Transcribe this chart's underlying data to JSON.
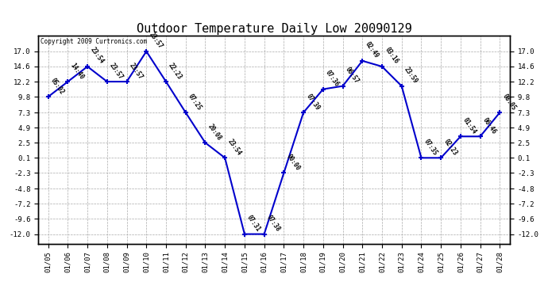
{
  "title": "Outdoor Temperature Daily Low 20090129",
  "copyright_text": "Copyright 2009 Curtronics.com",
  "dates": [
    "01/05",
    "01/06",
    "01/07",
    "01/08",
    "01/09",
    "01/10",
    "01/11",
    "01/12",
    "01/13",
    "01/14",
    "01/15",
    "01/16",
    "01/17",
    "01/18",
    "01/19",
    "01/20",
    "01/21",
    "01/22",
    "01/23",
    "01/24",
    "01/25",
    "01/26",
    "01/27",
    "01/28"
  ],
  "values": [
    9.8,
    12.2,
    14.6,
    12.2,
    12.2,
    17.0,
    12.2,
    7.3,
    2.5,
    0.1,
    -12.0,
    -12.0,
    -2.3,
    7.3,
    11.0,
    11.5,
    15.5,
    14.6,
    11.5,
    0.1,
    0.1,
    3.5,
    3.5,
    7.3
  ],
  "time_labels": [
    "05:02",
    "14:40",
    "23:54",
    "23:57",
    "23:57",
    "23:57",
    "22:23",
    "07:25",
    "20:08",
    "23:54",
    "07:31",
    "07:38",
    "00:00",
    "07:39",
    "07:36",
    "06:57",
    "02:49",
    "03:16",
    "23:59",
    "07:35",
    "02:23",
    "01:54",
    "06:46",
    "08:05"
  ],
  "yticks": [
    -12.0,
    -9.6,
    -7.2,
    -4.8,
    -2.3,
    0.1,
    2.5,
    4.9,
    7.3,
    9.8,
    12.2,
    14.6,
    17.0
  ],
  "line_color": "#0000cc",
  "marker_color": "#0000cc",
  "bg_color": "#ffffff",
  "grid_color": "#aaaaaa",
  "title_fontsize": 11,
  "label_fontsize": 5.5,
  "tick_fontsize": 6.5,
  "ylim": [
    -13.5,
    19.5
  ]
}
